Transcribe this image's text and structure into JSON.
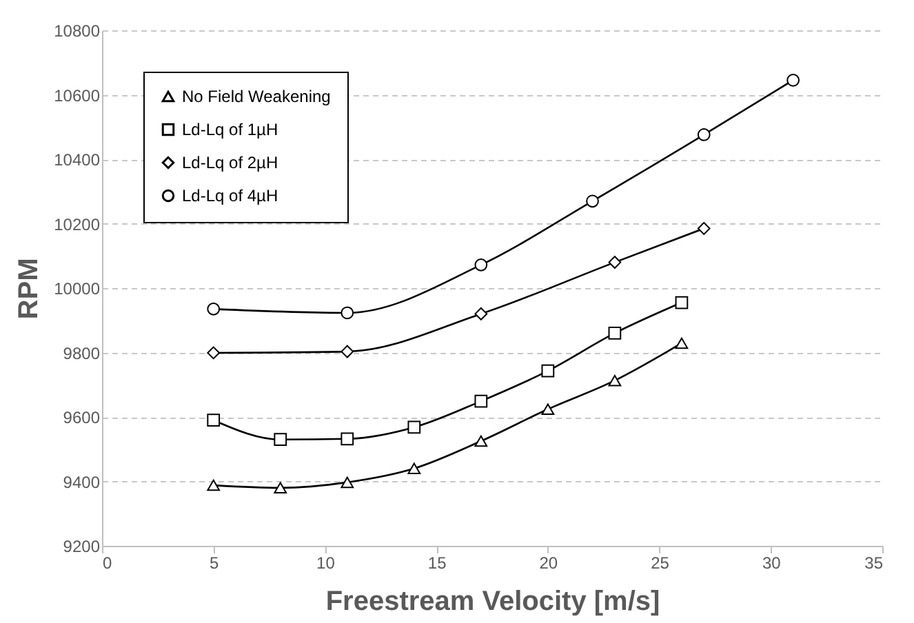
{
  "chart_data": {
    "type": "line",
    "xlabel": "Freestream Velocity [m/s]",
    "ylabel": "RPM",
    "xlim": [
      0,
      35
    ],
    "xticks": [
      0,
      5,
      10,
      15,
      20,
      25,
      30,
      35
    ],
    "ylim": [
      9200,
      10800
    ],
    "yticks": [
      9200,
      9400,
      9600,
      9800,
      10000,
      10200,
      10400,
      10600,
      10800
    ],
    "grid": "y",
    "legend": "top left",
    "line_style": "solid",
    "series": [
      {
        "name": "No Field Weakening",
        "color": "#000000",
        "marker": "triangle",
        "x": [
          5,
          8,
          11,
          14,
          17,
          20,
          23,
          26
        ],
        "values": [
          9388,
          9380,
          9397,
          9440,
          9525,
          9624,
          9713,
          9829
        ]
      },
      {
        "name": "Ld-Lq of 1µH",
        "color": "#000000",
        "marker": "square",
        "x": [
          5,
          8,
          11,
          14,
          17,
          20,
          23,
          26
        ],
        "values": [
          9590,
          9530,
          9532,
          9568,
          9649,
          9743,
          9860,
          9955
        ]
      },
      {
        "name": "Ld-Lq of 2µH",
        "color": "#000000",
        "marker": "diamond",
        "x": [
          5,
          11,
          17,
          23,
          27
        ],
        "values": [
          9799,
          9803,
          9920,
          10080,
          10185
        ]
      },
      {
        "name": "Ld-Lq of 4µH",
        "color": "#000000",
        "marker": "circle",
        "x": [
          5,
          11,
          17,
          22,
          27,
          31
        ],
        "values": [
          9935,
          9923,
          10072,
          10270,
          10476,
          10645
        ]
      }
    ]
  }
}
